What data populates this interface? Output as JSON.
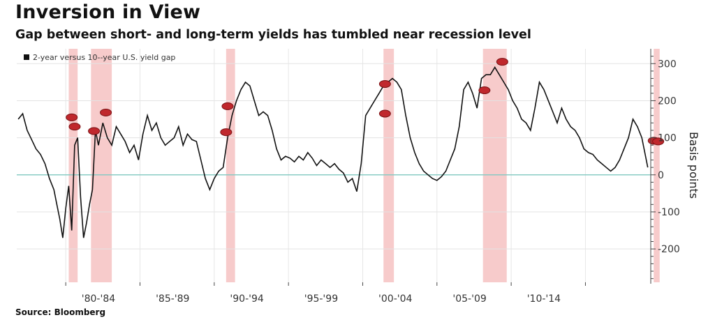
{
  "header": {
    "title": "Inversion in View",
    "subtitle": "Gap between short- and long-term yields has tumbled near recession level"
  },
  "footer": {
    "source": "Source: Bloomberg"
  },
  "chart_data": {
    "type": "line",
    "title": "Inversion in View",
    "subtitle": "Gap between short- and long-term yields has tumbled near recession level",
    "ylabel": "Basis points",
    "xlabel": "",
    "ylim": [
      -290,
      340
    ],
    "xlim": [
      1976.5,
      2019.2
    ],
    "x_tick_labels": [
      {
        "x": 1982,
        "label": "'80-'84"
      },
      {
        "x": 1987,
        "label": "'85-'89"
      },
      {
        "x": 1992,
        "label": "'90-'94"
      },
      {
        "x": 1997,
        "label": "'95-'99"
      },
      {
        "x": 2002,
        "label": "'00-'04"
      },
      {
        "x": 2007,
        "label": "'05-'09"
      },
      {
        "x": 2012,
        "label": "'10-'14"
      }
    ],
    "y_ticks": [
      300,
      200,
      100,
      0,
      -100,
      -200
    ],
    "y_tick_labels": [
      "300",
      "200",
      "100",
      "0",
      "-100",
      "-200"
    ],
    "grid": true,
    "legend_position": "top-left",
    "zero_line_color": "#7fc8c0",
    "line_color": "#111111",
    "recession_color": "#f6c2c2",
    "series": [
      {
        "name": "2-year versus 10--year U.S. yield gap",
        "x": [
          1976.6,
          1976.9,
          1977.2,
          1977.5,
          1977.8,
          1978.1,
          1978.4,
          1978.7,
          1979.0,
          1979.2,
          1979.4,
          1979.6,
          1979.8,
          1980.0,
          1980.2,
          1980.4,
          1980.6,
          1980.8,
          1981.0,
          1981.2,
          1981.4,
          1981.6,
          1981.8,
          1982.0,
          1982.3,
          1982.6,
          1982.9,
          1983.2,
          1983.5,
          1983.8,
          1984.1,
          1984.4,
          1984.7,
          1985.0,
          1985.3,
          1985.6,
          1985.9,
          1986.2,
          1986.5,
          1986.8,
          1987.1,
          1987.4,
          1987.7,
          1988.0,
          1988.3,
          1988.6,
          1988.9,
          1989.2,
          1989.5,
          1989.8,
          1990.1,
          1990.4,
          1990.7,
          1991.0,
          1991.3,
          1991.6,
          1991.9,
          1992.2,
          1992.5,
          1992.8,
          1993.1,
          1993.4,
          1993.7,
          1994.0,
          1994.3,
          1994.6,
          1994.9,
          1995.2,
          1995.5,
          1995.8,
          1996.1,
          1996.4,
          1996.7,
          1997.0,
          1997.3,
          1997.6,
          1997.9,
          1998.2,
          1998.5,
          1998.8,
          1999.1,
          1999.4,
          1999.7,
          2000.0,
          2000.3,
          2000.6,
          2000.9,
          2001.2,
          2001.5,
          2001.8,
          2002.1,
          2002.4,
          2002.7,
          2003.0,
          2003.3,
          2003.6,
          2003.9,
          2004.2,
          2004.5,
          2004.8,
          2005.1,
          2005.4,
          2005.7,
          2006.0,
          2006.3,
          2006.6,
          2006.9,
          2007.2,
          2007.5,
          2007.8,
          2008.1,
          2008.4,
          2008.7,
          2009.0,
          2009.3,
          2009.6,
          2009.9,
          2010.2,
          2010.5,
          2010.8,
          2011.1,
          2011.4,
          2011.7,
          2012.0,
          2012.3,
          2012.6,
          2012.9,
          2013.2,
          2013.5,
          2013.8,
          2014.1,
          2014.4,
          2014.7,
          2015.0,
          2015.3,
          2015.6,
          2015.9,
          2016.2,
          2016.5,
          2016.8,
          2017.1,
          2017.4,
          2017.7,
          2018.0,
          2018.3,
          2018.6,
          2018.9,
          2019.0
        ],
        "values": [
          150,
          165,
          120,
          95,
          70,
          55,
          30,
          -10,
          -40,
          -80,
          -120,
          -170,
          -90,
          -30,
          -150,
          80,
          100,
          -60,
          -170,
          -130,
          -80,
          -40,
          120,
          80,
          140,
          100,
          80,
          130,
          110,
          90,
          60,
          80,
          40,
          110,
          160,
          120,
          140,
          100,
          80,
          90,
          100,
          130,
          80,
          110,
          95,
          90,
          40,
          -10,
          -40,
          -10,
          10,
          20,
          100,
          160,
          200,
          230,
          250,
          240,
          200,
          160,
          170,
          160,
          120,
          70,
          40,
          50,
          45,
          35,
          50,
          40,
          60,
          45,
          25,
          40,
          30,
          20,
          30,
          15,
          5,
          -20,
          -10,
          -45,
          30,
          160,
          180,
          200,
          220,
          240,
          250,
          260,
          250,
          230,
          160,
          100,
          60,
          30,
          10,
          0,
          -10,
          -15,
          -5,
          10,
          40,
          70,
          130,
          230,
          250,
          220,
          180,
          260,
          270,
          270,
          290,
          270,
          250,
          230,
          200,
          180,
          150,
          140,
          120,
          180,
          250,
          230,
          200,
          170,
          140,
          180,
          150,
          130,
          120,
          100,
          70,
          60,
          55,
          40,
          30,
          20,
          10,
          20,
          40,
          70,
          100,
          150,
          130,
          100,
          40,
          20
        ]
      }
    ],
    "recession_bands": [
      {
        "start": 1980.0,
        "end": 1980.6
      },
      {
        "start": 1981.5,
        "end": 1982.9
      },
      {
        "start": 1990.6,
        "end": 1991.2
      },
      {
        "start": 2001.2,
        "end": 2001.9
      },
      {
        "start": 2007.9,
        "end": 2009.5
      },
      {
        "start": 2019.4,
        "end": 2019.8
      }
    ],
    "markers": [
      {
        "x": 1980.2,
        "y": 155
      },
      {
        "x": 1980.4,
        "y": 130
      },
      {
        "x": 1981.7,
        "y": 118
      },
      {
        "x": 1982.5,
        "y": 168
      },
      {
        "x": 1990.7,
        "y": 185
      },
      {
        "x": 1990.6,
        "y": 115
      },
      {
        "x": 2001.3,
        "y": 245
      },
      {
        "x": 2001.3,
        "y": 165
      },
      {
        "x": 2008.0,
        "y": 228
      },
      {
        "x": 2009.2,
        "y": 305
      },
      {
        "x": 2019.4,
        "y": 92
      },
      {
        "x": 2019.7,
        "y": 90
      }
    ]
  }
}
